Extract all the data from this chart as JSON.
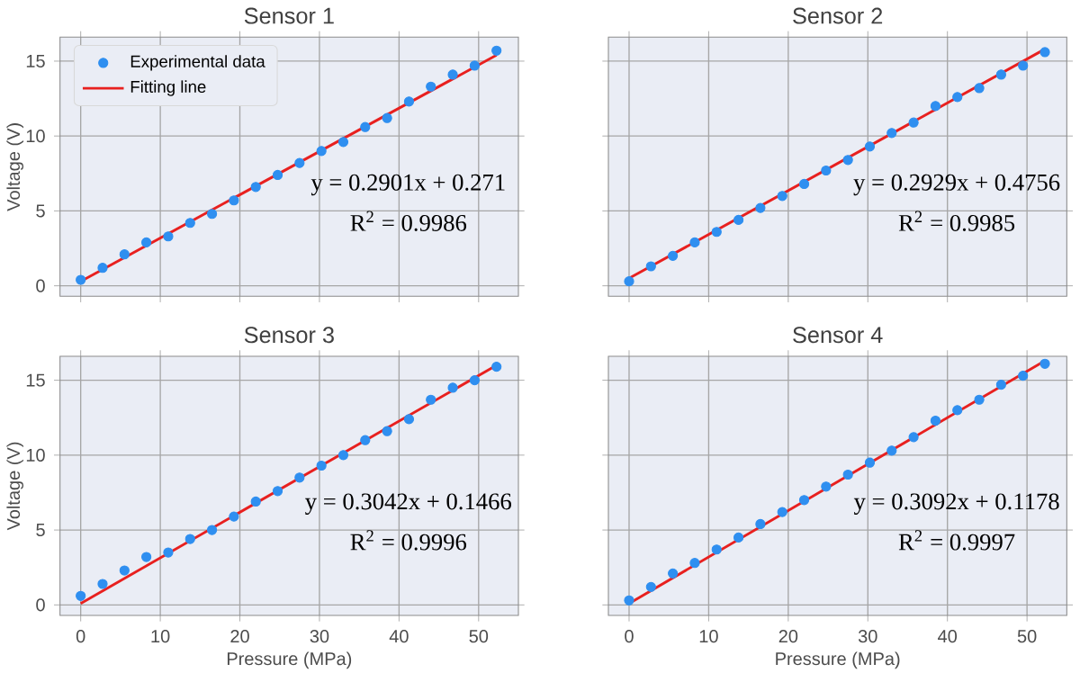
{
  "chart_data": [
    {
      "type": "scatter",
      "title": "Sensor 1",
      "ylabel": "Voltage (V)",
      "xlim": [
        -2.6,
        55
      ],
      "ylim": [
        -0.7,
        16.6
      ],
      "xticks": [
        0,
        10,
        20,
        30,
        40,
        50
      ],
      "yticks": [
        0,
        5,
        10,
        15
      ],
      "grid": true,
      "legend": "top left",
      "tick_labels": "y",
      "series": [
        {
          "name": "Experimental data",
          "color": "#2f8ff0",
          "x": [
            0,
            2.75,
            5.5,
            8.25,
            11,
            13.75,
            16.5,
            19.25,
            22,
            24.75,
            27.5,
            30.25,
            33,
            35.75,
            38.5,
            41.25,
            44,
            46.75,
            49.5,
            52.25
          ],
          "values": [
            0.4,
            1.2,
            2.1,
            2.9,
            3.3,
            4.2,
            4.8,
            5.7,
            6.6,
            7.4,
            8.2,
            9.0,
            9.6,
            10.6,
            11.2,
            12.3,
            13.3,
            14.1,
            14.7,
            15.7
          ]
        },
        {
          "name": "Fitting line",
          "type": "line",
          "color": "#e8201f",
          "x": [
            0,
            52.25
          ],
          "values": [
            0.3,
            15.4
          ]
        }
      ],
      "annotations": [
        "y = 0.2901x + 0.271",
        "R$^{2}$ = 0.9986"
      ]
    },
    {
      "type": "scatter",
      "title": "Sensor 2",
      "xlim": [
        -2.6,
        55
      ],
      "ylim": [
        -0.7,
        16.6
      ],
      "xticks": [
        0,
        10,
        20,
        30,
        40,
        50
      ],
      "yticks": [
        0,
        5,
        10,
        15
      ],
      "grid": true,
      "tick_labels": false,
      "series": [
        {
          "color": "#2f8ff0",
          "x": [
            0,
            2.75,
            5.5,
            8.25,
            11,
            13.75,
            16.5,
            19.25,
            22,
            24.75,
            27.5,
            30.25,
            33,
            35.75,
            38.5,
            41.25,
            44,
            46.75,
            49.5,
            52.25
          ],
          "values": [
            0.3,
            1.3,
            2.0,
            2.9,
            3.6,
            4.4,
            5.2,
            6.0,
            6.8,
            7.7,
            8.4,
            9.3,
            10.2,
            10.9,
            12.0,
            12.6,
            13.2,
            14.1,
            14.7,
            15.6
          ]
        },
        {
          "type": "line",
          "color": "#e8201f",
          "x": [
            0,
            52.25
          ],
          "values": [
            0.5,
            15.8
          ]
        }
      ],
      "annotations": [
        "y = 0.2929x + 0.4756",
        "R$^{2}$ = 0.9985"
      ]
    },
    {
      "type": "scatter",
      "title": "Sensor 3",
      "xlabel": "Pressure (MPa)",
      "ylabel": "Voltage (V)",
      "xlim": [
        -2.6,
        55
      ],
      "ylim": [
        -0.7,
        16.6
      ],
      "xticks": [
        0,
        10,
        20,
        30,
        40,
        50
      ],
      "yticks": [
        0,
        5,
        10,
        15
      ],
      "grid": true,
      "series": [
        {
          "color": "#2f8ff0",
          "x": [
            0,
            2.75,
            5.5,
            8.25,
            11,
            13.75,
            16.5,
            19.25,
            22,
            24.75,
            27.5,
            30.25,
            33,
            35.75,
            38.5,
            41.25,
            44,
            46.75,
            49.5,
            52.25
          ],
          "values": [
            0.6,
            1.4,
            2.3,
            3.2,
            3.5,
            4.4,
            5.0,
            5.9,
            6.9,
            7.6,
            8.5,
            9.3,
            10.0,
            11.0,
            11.6,
            12.4,
            13.7,
            14.5,
            15.0,
            15.9
          ]
        },
        {
          "type": "line",
          "color": "#e8201f",
          "x": [
            0,
            52.25
          ],
          "values": [
            0.1,
            16.0
          ]
        }
      ],
      "annotations": [
        "y = 0.3042x + 0.1466",
        "R$^{2}$ = 0.9996"
      ]
    },
    {
      "type": "scatter",
      "title": "Sensor 4",
      "xlabel": "Pressure (MPa)",
      "xlim": [
        -2.6,
        55
      ],
      "ylim": [
        -0.7,
        16.6
      ],
      "xticks": [
        0,
        10,
        20,
        30,
        40,
        50
      ],
      "yticks": [
        0,
        5,
        10,
        15
      ],
      "grid": true,
      "tick_labels": "x",
      "series": [
        {
          "color": "#2f8ff0",
          "x": [
            0,
            2.75,
            5.5,
            8.25,
            11,
            13.75,
            16.5,
            19.25,
            22,
            24.75,
            27.5,
            30.25,
            33,
            35.75,
            38.5,
            41.25,
            44,
            46.75,
            49.5,
            52.25
          ],
          "values": [
            0.3,
            1.2,
            2.1,
            2.8,
            3.7,
            4.5,
            5.4,
            6.2,
            7.0,
            7.9,
            8.7,
            9.5,
            10.3,
            11.2,
            12.3,
            13.0,
            13.7,
            14.7,
            15.3,
            16.1
          ]
        },
        {
          "type": "line",
          "color": "#e8201f",
          "x": [
            0,
            52.25
          ],
          "values": [
            0.1,
            16.3
          ]
        }
      ],
      "annotations": [
        "y = 0.3092x + 0.1178",
        "R$^{2}$ = 0.9997"
      ]
    }
  ]
}
